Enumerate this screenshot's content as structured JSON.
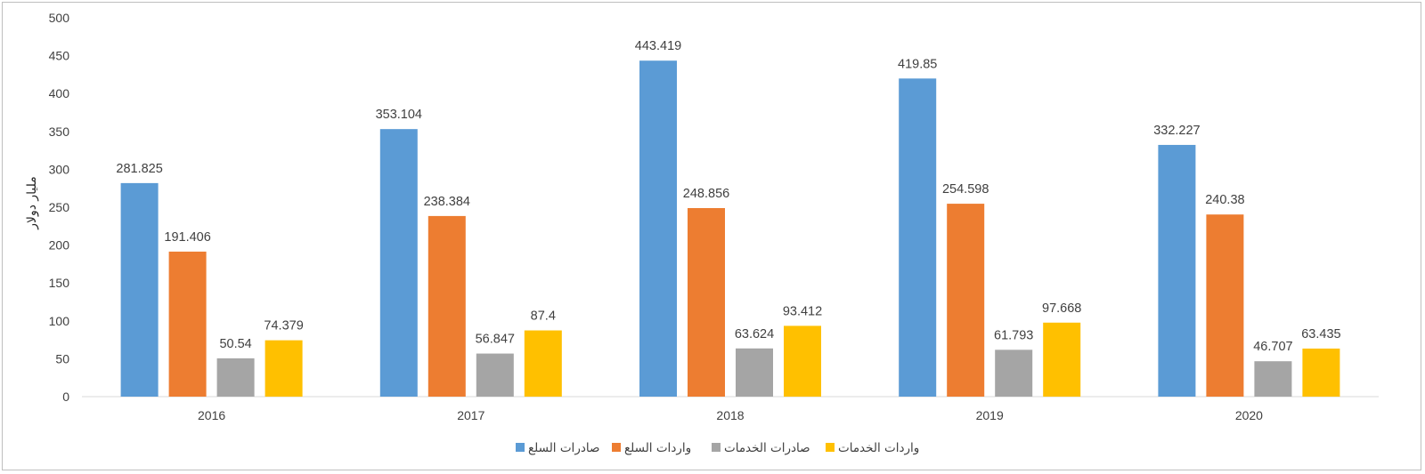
{
  "chart_data": {
    "type": "bar",
    "title": "",
    "xlabel": "",
    "ylabel": "مليار دولار",
    "ylim": [
      0,
      500
    ],
    "yticks": [
      0,
      50,
      100,
      150,
      200,
      250,
      300,
      350,
      400,
      450,
      500
    ],
    "categories": [
      "2016",
      "2017",
      "2018",
      "2019",
      "2020"
    ],
    "series": [
      {
        "name": "صادرات السلع",
        "color": "#5b9bd5",
        "values": [
          281.825,
          353.104,
          443.419,
          419.85,
          332.227
        ]
      },
      {
        "name": "واردات السلع",
        "color": "#ed7d31",
        "values": [
          191.406,
          238.384,
          248.856,
          254.598,
          240.38
        ]
      },
      {
        "name": "صادرات الخدمات",
        "color": "#a5a5a5",
        "values": [
          50.54,
          56.847,
          63.624,
          61.793,
          46.707
        ]
      },
      {
        "name": "واردات الخدمات",
        "color": "#ffc000",
        "values": [
          74.379,
          87.4,
          93.412,
          97.668,
          63.435
        ]
      }
    ],
    "data_labels": [
      [
        "281.825",
        "353.104",
        "443.419",
        "419.85",
        "332.227"
      ],
      [
        "191.406",
        "238.384",
        "248.856",
        "254.598",
        "240.38"
      ],
      [
        "50.54",
        "56.847",
        "63.624",
        "61.793",
        "46.707"
      ],
      [
        "74.379",
        "87.4",
        "93.412",
        "97.668",
        "63.435"
      ]
    ],
    "grid": false,
    "legend_position": "bottom"
  }
}
